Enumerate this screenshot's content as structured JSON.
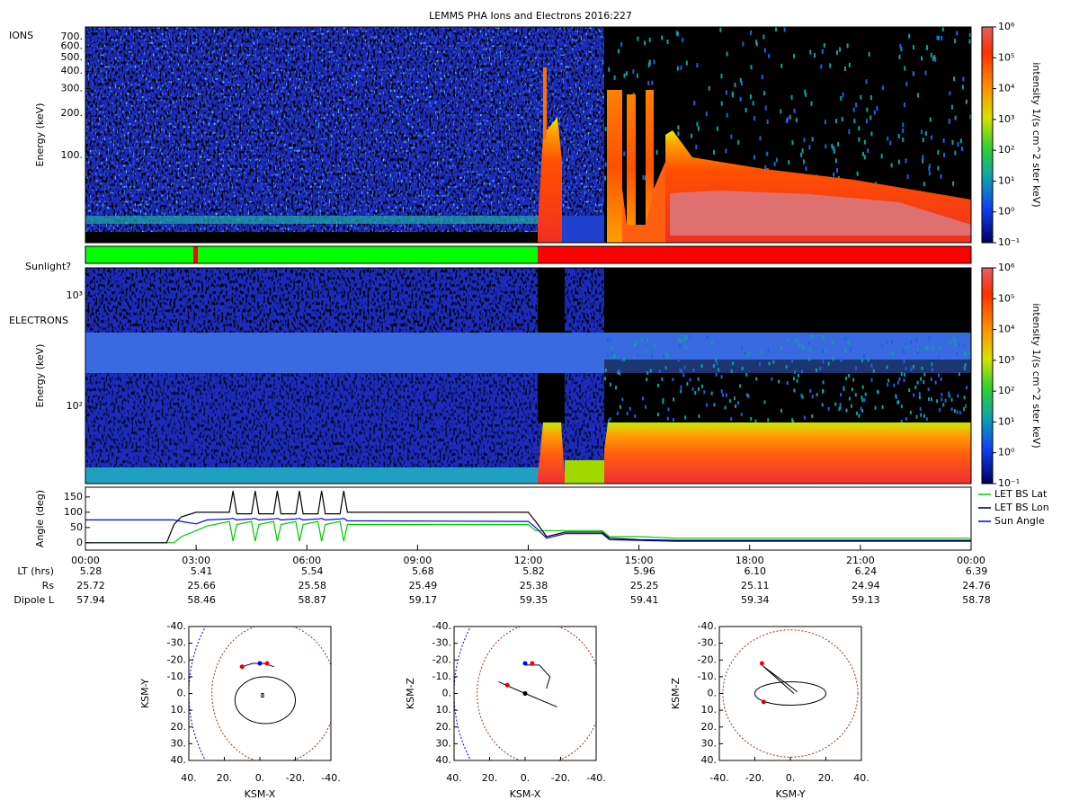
{
  "title": "LEMMS PHA Ions and Electrons  2016:227",
  "ions_panel": {
    "label": "IONS",
    "y_label": "Energy (keV)",
    "log": true,
    "ylim": [
      24,
      826
    ],
    "yticks": [
      {
        "value": 700,
        "label": "700."
      },
      {
        "value": 600,
        "label": "600."
      },
      {
        "value": 500,
        "label": "500."
      },
      {
        "value": 400,
        "label": "400."
      },
      {
        "value": 300,
        "label": "300."
      },
      {
        "value": 200,
        "label": "200."
      },
      {
        "value": 100,
        "label": "100."
      }
    ]
  },
  "sunlight": {
    "label": "Sunlight?"
  },
  "electrons_panel": {
    "label": "ELECTRONS",
    "y_label": "Energy (keV)",
    "log": true,
    "ylim": [
      20,
      1790
    ],
    "yticks": [
      {
        "value": 1000,
        "label": "10³"
      },
      {
        "value": 100,
        "label": "10²"
      }
    ]
  },
  "colorbar": {
    "label": "intensity 1/(s cm^2 ster keV)",
    "log": true,
    "lim": [
      0.1,
      1000000
    ],
    "ticks": [
      {
        "value": 1000000,
        "label": "10⁶"
      },
      {
        "value": 100000,
        "label": "10⁵"
      },
      {
        "value": 10000,
        "label": "10⁴"
      },
      {
        "value": 1000,
        "label": "10³"
      },
      {
        "value": 100,
        "label": "10²"
      },
      {
        "value": 10,
        "label": "10¹"
      },
      {
        "value": 1,
        "label": "10⁰"
      },
      {
        "value": 0.1,
        "label": "10⁻¹"
      }
    ]
  },
  "chart_data": {
    "type": "line",
    "y_label": "Angle (deg)",
    "xlim": [
      0,
      24
    ],
    "xticks": [
      {
        "value": 0,
        "label": "00:00"
      },
      {
        "value": 3,
        "label": "03:00"
      },
      {
        "value": 6,
        "label": "06:00"
      },
      {
        "value": 9,
        "label": "09:00"
      },
      {
        "value": 12,
        "label": "12:00"
      },
      {
        "value": 15,
        "label": "15:00"
      },
      {
        "value": 18,
        "label": "18:00"
      },
      {
        "value": 21,
        "label": "21:00"
      },
      {
        "value": 24,
        "label": "00:00"
      }
    ],
    "ylim": [
      -24,
      182
    ],
    "yticks": [
      0,
      50,
      100,
      150
    ],
    "x": [
      0,
      2.2,
      2.4,
      2.6,
      3.0,
      3.3,
      3.9,
      4.0,
      4.1,
      4.5,
      4.6,
      4.7,
      5.1,
      5.2,
      5.3,
      5.7,
      5.8,
      5.9,
      6.3,
      6.4,
      6.5,
      6.9,
      7.0,
      7.1,
      12.0,
      12.2,
      12.5,
      13.0,
      14.0,
      14.2,
      15.0,
      16.0,
      18.0,
      24.0
    ],
    "series": [
      {
        "name": "LET BS Lat",
        "color": "#00cc00",
        "values": [
          0,
          0,
          0,
          20,
          40,
          55,
          70,
          5,
          60,
          70,
          5,
          60,
          70,
          5,
          60,
          70,
          5,
          60,
          70,
          5,
          60,
          70,
          5,
          60,
          60,
          40,
          40,
          40,
          40,
          20,
          20,
          15,
          15,
          15
        ]
      },
      {
        "name": "LET BS Lon",
        "color": "#000000",
        "values": [
          0,
          0,
          60,
          85,
          100,
          100,
          100,
          170,
          95,
          95,
          170,
          95,
          95,
          170,
          95,
          95,
          170,
          95,
          95,
          170,
          95,
          95,
          170,
          100,
          100,
          70,
          20,
          35,
          35,
          15,
          10,
          8,
          8,
          8
        ]
      },
      {
        "name": "Sun Angle",
        "color": "#0000dd",
        "values": [
          75,
          75,
          75,
          70,
          62,
          75,
          78,
          80,
          75,
          78,
          80,
          75,
          78,
          80,
          75,
          78,
          80,
          75,
          78,
          80,
          75,
          78,
          80,
          72,
          70,
          50,
          15,
          30,
          30,
          10,
          8,
          5,
          5,
          5
        ]
      }
    ]
  },
  "ephemeris": {
    "rows": [
      {
        "label": "LT (hrs)",
        "values": [
          "5.28",
          "5.41",
          "5.54",
          "5.68",
          "5.82",
          "5.96",
          "6.10",
          "6.24",
          "6.39"
        ]
      },
      {
        "label": "Rs",
        "values": [
          "25.72",
          "25.66",
          "25.58",
          "25.49",
          "25.38",
          "25.25",
          "25.11",
          "24.94",
          "24.76"
        ]
      },
      {
        "label": "Dipole L",
        "values": [
          "57.94",
          "58.46",
          "58.87",
          "59.17",
          "59.35",
          "59.41",
          "59.34",
          "59.13",
          "58.78"
        ]
      }
    ]
  },
  "orbit_plots": [
    {
      "x_label": "KSM-X",
      "y_label": "KSM-Y",
      "xlim": [
        40,
        -40
      ],
      "ylim": [
        40,
        -40
      ],
      "xticks": [
        {
          "value": 40,
          "label": "40."
        },
        {
          "value": 20,
          "label": "20."
        },
        {
          "value": 0,
          "label": "0."
        },
        {
          "value": -20,
          "label": "-20."
        },
        {
          "value": -40,
          "label": "-40."
        }
      ],
      "yticks": [
        {
          "value": -40,
          "label": "-40."
        },
        {
          "value": -30,
          "label": "-30."
        },
        {
          "value": -20,
          "label": "-20."
        },
        {
          "value": -10,
          "label": "-10."
        },
        {
          "value": 0,
          "label": "0."
        },
        {
          "value": 10,
          "label": "10."
        },
        {
          "value": 20,
          "label": "20."
        },
        {
          "value": 30,
          "label": "30."
        },
        {
          "value": 40,
          "label": "40."
        }
      ]
    },
    {
      "x_label": "KSM-X",
      "y_label": "KSM-Z",
      "xlim": [
        40,
        -40
      ],
      "ylim": [
        40,
        -40
      ],
      "xticks": [
        {
          "value": 40,
          "label": "40."
        },
        {
          "value": 20,
          "label": "20."
        },
        {
          "value": 0,
          "label": "0."
        },
        {
          "value": -20,
          "label": "-20."
        },
        {
          "value": -40,
          "label": "-40."
        }
      ],
      "yticks": [
        {
          "value": -40,
          "label": "-40."
        },
        {
          "value": -30,
          "label": "-30."
        },
        {
          "value": -20,
          "label": "-20."
        },
        {
          "value": -10,
          "label": "-10."
        },
        {
          "value": 0,
          "label": "0."
        },
        {
          "value": 10,
          "label": "10."
        },
        {
          "value": 20,
          "label": "20."
        },
        {
          "value": 30,
          "label": "30."
        },
        {
          "value": 40,
          "label": "40."
        }
      ]
    },
    {
      "x_label": "KSM-Y",
      "y_label": "KSM-Z",
      "xlim": [
        -40,
        40
      ],
      "ylim": [
        40,
        -40
      ],
      "xticks": [
        {
          "value": -40,
          "label": "-40."
        },
        {
          "value": -20,
          "label": "-20."
        },
        {
          "value": 0,
          "label": "0."
        },
        {
          "value": 20,
          "label": "20."
        },
        {
          "value": 40,
          "label": "40."
        }
      ],
      "yticks": [
        {
          "value": -40,
          "label": "-40."
        },
        {
          "value": -30,
          "label": "-30."
        },
        {
          "value": -20,
          "label": "-20."
        },
        {
          "value": -10,
          "label": "-10."
        },
        {
          "value": 0,
          "label": "0."
        },
        {
          "value": 10,
          "label": "10."
        },
        {
          "value": 20,
          "label": "20."
        },
        {
          "value": 30,
          "label": "30."
        },
        {
          "value": 40,
          "label": "40."
        }
      ]
    }
  ]
}
